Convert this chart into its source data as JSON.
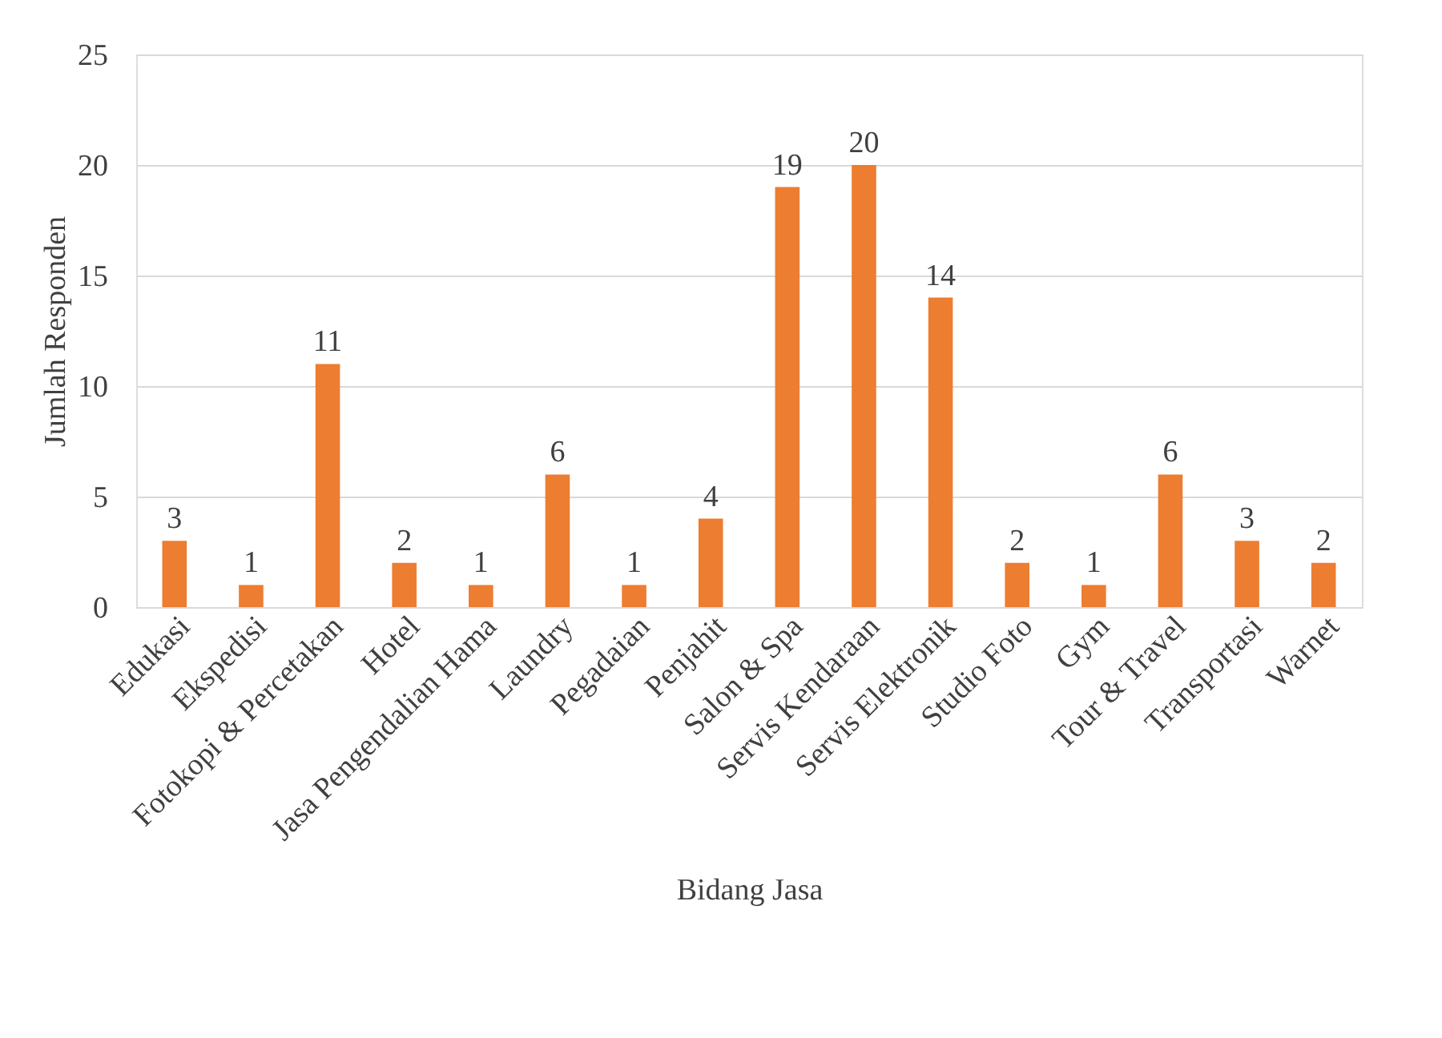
{
  "chart_data": {
    "type": "bar",
    "xlabel": "Bidang Jasa",
    "ylabel": "Jumlah Responden",
    "categories": [
      "Edukasi",
      "Ekspedisi",
      "Fotokopi & Percetakan",
      "Hotel",
      "Jasa Pengendalian Hama",
      "Laundry",
      "Pegadaian",
      "Penjahit",
      "Salon & Spa",
      "Servis Kendaraan",
      "Servis Elektronik",
      "Studio Foto",
      "Gym",
      "Tour & Travel",
      "Transportasi",
      "Warnet"
    ],
    "values": [
      3,
      1,
      11,
      2,
      1,
      6,
      1,
      4,
      19,
      20,
      14,
      2,
      1,
      6,
      3,
      2
    ],
    "color": "#ed7d31",
    "ylim": [
      0,
      25
    ],
    "yticks": [
      0,
      5,
      10,
      15,
      20,
      25
    ],
    "grid": "y",
    "data_labels": true
  }
}
